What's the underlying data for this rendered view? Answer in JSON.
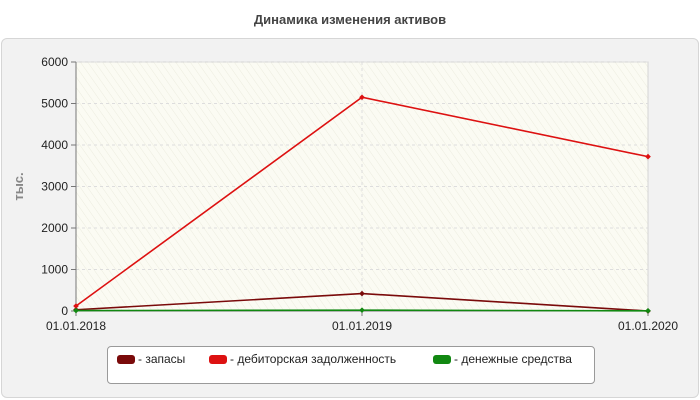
{
  "chart_data": {
    "type": "line",
    "title": "Динамика изменения активов",
    "ylabel": "тыс.",
    "xlabel": "",
    "categories": [
      "01.01.2018",
      "01.01.2019",
      "01.01.2020"
    ],
    "ylim": [
      0,
      6000
    ],
    "yticks": [
      "0",
      "1000",
      "2000",
      "3000",
      "4000",
      "5000",
      "6000"
    ],
    "grid": true,
    "legend_position": "bottom",
    "series": [
      {
        "name": "запасы",
        "color": "#7a0a0a",
        "values": [
          30,
          420,
          0
        ]
      },
      {
        "name": "дебиторская задолженность",
        "color": "#dd1111",
        "values": [
          120,
          5150,
          3720
        ]
      },
      {
        "name": "денежные средства",
        "color": "#118811",
        "values": [
          10,
          20,
          5
        ]
      }
    ]
  },
  "legend": {
    "items": [
      {
        "label": "- запасы",
        "color": "#7a0a0a"
      },
      {
        "label": "- дебиторская задолженность",
        "color": "#dd1111"
      },
      {
        "label": "- денежные средства",
        "color": "#118811"
      }
    ]
  }
}
